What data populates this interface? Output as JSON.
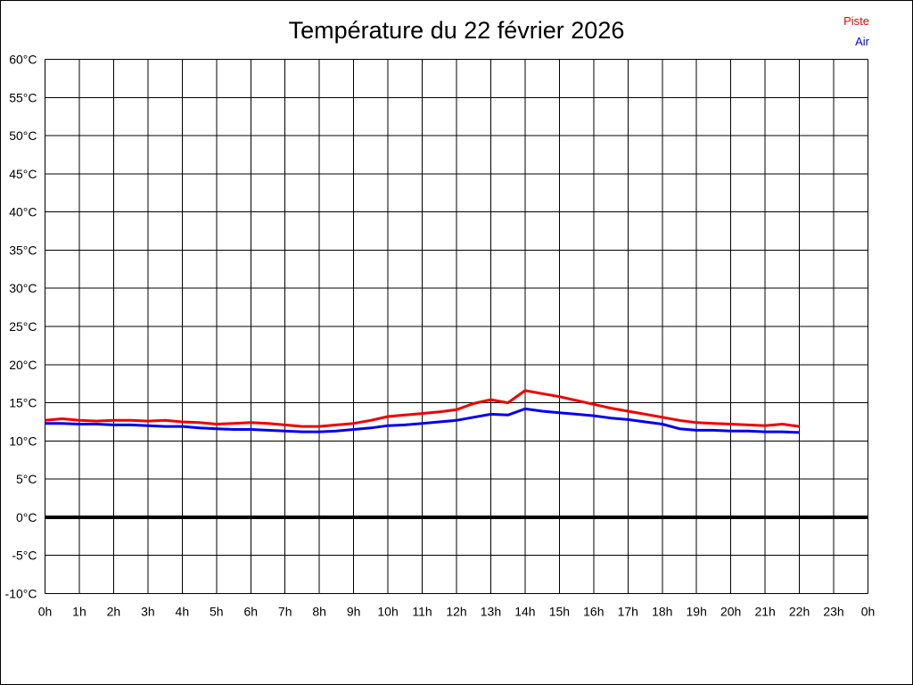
{
  "chart_data": {
    "type": "line",
    "title": "Température du 22 février 2026",
    "grid": true,
    "legend_position": "top-right",
    "xlim_hours": [
      0,
      24
    ],
    "ylim": [
      -10,
      60
    ],
    "y_step": 5,
    "zero_line_value": 0,
    "x_tick_labels": [
      "0h",
      "1h",
      "2h",
      "3h",
      "4h",
      "5h",
      "6h",
      "7h",
      "8h",
      "9h",
      "10h",
      "11h",
      "12h",
      "13h",
      "14h",
      "15h",
      "16h",
      "17h",
      "18h",
      "19h",
      "20h",
      "21h",
      "22h",
      "23h",
      "0h"
    ],
    "y_tick_labels": [
      "60°C",
      "55°C",
      "50°C",
      "45°C",
      "40°C",
      "35°C",
      "30°C",
      "25°C",
      "20°C",
      "15°C",
      "10°C",
      "5°C",
      "0°C",
      "-5°C",
      "-10°C"
    ],
    "axis_color": "#000000",
    "series": [
      {
        "name": "Piste",
        "color": "#ee0000",
        "x": [
          0,
          0.5,
          1,
          1.5,
          2,
          2.5,
          3,
          3.5,
          4,
          4.5,
          5,
          5.5,
          6,
          6.5,
          7,
          7.5,
          8,
          8.5,
          9,
          9.5,
          10,
          10.5,
          11,
          11.5,
          12,
          12.5,
          13,
          13.5,
          14,
          14.5,
          15,
          15.5,
          16,
          16.5,
          17,
          17.5,
          18,
          18.5,
          19,
          19.5,
          20,
          20.5,
          21,
          21.5,
          22
        ],
        "values": [
          12.7,
          12.9,
          12.7,
          12.6,
          12.7,
          12.7,
          12.6,
          12.7,
          12.5,
          12.4,
          12.2,
          12.3,
          12.4,
          12.3,
          12.1,
          11.9,
          11.9,
          12.1,
          12.3,
          12.7,
          13.2,
          13.4,
          13.6,
          13.8,
          14.1,
          14.9,
          15.4,
          15.0,
          16.6,
          16.2,
          15.8,
          15.3,
          14.8,
          14.3,
          13.9,
          13.5,
          13.1,
          12.7,
          12.4,
          12.3,
          12.2,
          12.1,
          12.0,
          12.2,
          11.9
        ]
      },
      {
        "name": "Air",
        "color": "#0000ee",
        "x": [
          0,
          0.5,
          1,
          1.5,
          2,
          2.5,
          3,
          3.5,
          4,
          4.5,
          5,
          5.5,
          6,
          6.5,
          7,
          7.5,
          8,
          8.5,
          9,
          9.5,
          10,
          10.5,
          11,
          11.5,
          12,
          12.5,
          13,
          13.5,
          14,
          14.5,
          15,
          15.5,
          16,
          16.5,
          17,
          17.5,
          18,
          18.5,
          19,
          19.5,
          20,
          20.5,
          21,
          21.5,
          22
        ],
        "values": [
          12.3,
          12.3,
          12.2,
          12.2,
          12.1,
          12.1,
          12.0,
          11.9,
          11.9,
          11.7,
          11.6,
          11.5,
          11.5,
          11.4,
          11.3,
          11.2,
          11.2,
          11.3,
          11.5,
          11.7,
          12.0,
          12.1,
          12.3,
          12.5,
          12.7,
          13.1,
          13.5,
          13.4,
          14.2,
          13.9,
          13.7,
          13.5,
          13.3,
          13.0,
          12.8,
          12.5,
          12.2,
          11.6,
          11.4,
          11.4,
          11.3,
          11.3,
          11.2,
          11.2,
          11.1
        ]
      }
    ]
  }
}
